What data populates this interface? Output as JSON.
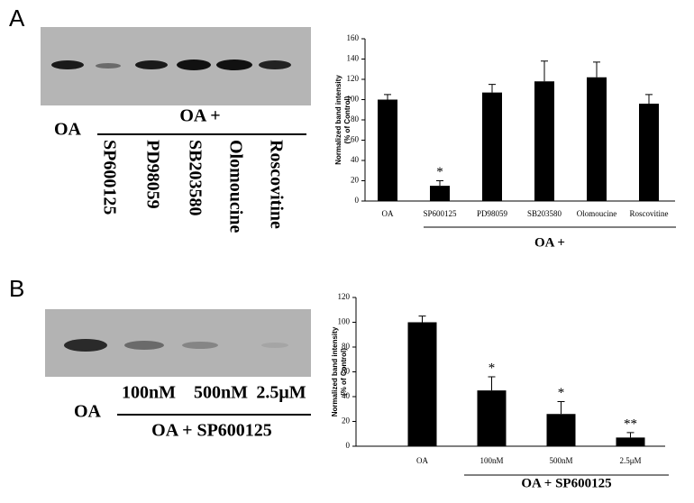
{
  "panels": [
    "A",
    "B"
  ],
  "blots": [
    {
      "control_label": "OA",
      "group_label": "OA +",
      "lane_labels": [
        "SP600125",
        "PD98059",
        "SB203580",
        "Olomoucine",
        "Roscovitine"
      ]
    },
    {
      "control_label": "OA",
      "group_label": "OA + SP600125",
      "lane_labels": [
        "100nM",
        "500nM",
        "2.5μM"
      ]
    }
  ],
  "chart_data": [
    {
      "type": "bar",
      "y_label": [
        "Normalized band intensity",
        "(% of Control)"
      ],
      "categories": [
        "OA",
        "SP600125",
        "PD98059",
        "SB203580",
        "Olomoucine",
        "Roscovitine"
      ],
      "values": [
        100,
        15,
        107,
        118,
        122,
        96
      ],
      "errors": [
        5,
        5,
        8,
        20,
        15,
        9
      ],
      "significance": [
        null,
        "*",
        null,
        null,
        null,
        null
      ],
      "group_label": "OA +",
      "color": "#000000",
      "ylim": [
        0,
        160
      ],
      "yticks": [
        0,
        20,
        40,
        60,
        80,
        100,
        120,
        140,
        160
      ]
    },
    {
      "type": "bar",
      "y_label": [
        "Normalized band intensity",
        "(% of Control)"
      ],
      "categories": [
        "OA",
        "100nM",
        "500nM",
        "2.5μM"
      ],
      "values": [
        100,
        45,
        26,
        7
      ],
      "errors": [
        5,
        11,
        10,
        4
      ],
      "significance": [
        null,
        "*",
        "*",
        "**"
      ],
      "group_label": "OA + SP600125",
      "color": "#000000",
      "ylim": [
        0,
        120
      ],
      "yticks": [
        0,
        20,
        40,
        60,
        80,
        100,
        120
      ]
    }
  ]
}
